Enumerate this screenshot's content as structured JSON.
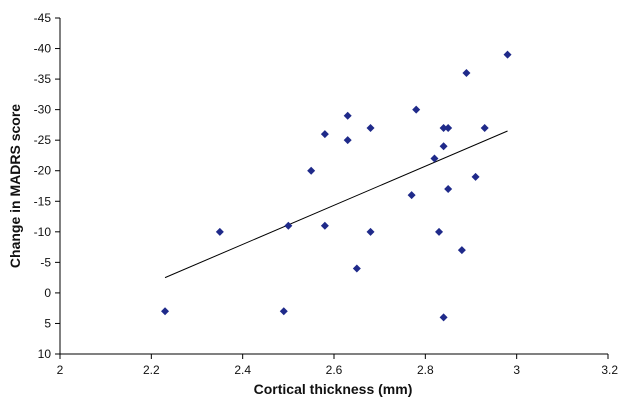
{
  "chart_data": {
    "type": "scatter",
    "title": "",
    "xlabel": "Cortical thickness (mm)",
    "ylabel": "Change in MADRS score",
    "xlim": [
      2,
      3.2
    ],
    "ylim": [
      -45,
      10
    ],
    "y_axis_inverted": true,
    "grid": false,
    "x_ticks": [
      2,
      2.2,
      2.4,
      2.6,
      2.8,
      3,
      3.2
    ],
    "x_tick_labels": [
      "2",
      "2.2",
      "2.4",
      "2.6",
      "2.8",
      "3",
      "3.2"
    ],
    "y_ticks": [
      -45,
      -40,
      -35,
      -30,
      -25,
      -20,
      -15,
      -10,
      -5,
      0,
      5,
      10
    ],
    "y_tick_labels": [
      "-45",
      "-40",
      "-35",
      "-30",
      "-25",
      "-20",
      "-15",
      "-10",
      "-5",
      "0",
      "5",
      "10"
    ],
    "marker_color": "#1f2a8a",
    "series": [
      {
        "points": [
          {
            "x": 2.23,
            "y": 3
          },
          {
            "x": 2.35,
            "y": -10
          },
          {
            "x": 2.49,
            "y": 3
          },
          {
            "x": 2.5,
            "y": -11
          },
          {
            "x": 2.55,
            "y": -20
          },
          {
            "x": 2.58,
            "y": -26
          },
          {
            "x": 2.58,
            "y": -11
          },
          {
            "x": 2.63,
            "y": -29
          },
          {
            "x": 2.63,
            "y": -25
          },
          {
            "x": 2.65,
            "y": -4
          },
          {
            "x": 2.68,
            "y": -27
          },
          {
            "x": 2.68,
            "y": -10
          },
          {
            "x": 2.77,
            "y": -16
          },
          {
            "x": 2.78,
            "y": -30
          },
          {
            "x": 2.82,
            "y": -22
          },
          {
            "x": 2.83,
            "y": -10
          },
          {
            "x": 2.84,
            "y": -27
          },
          {
            "x": 2.84,
            "y": -24
          },
          {
            "x": 2.84,
            "y": 4
          },
          {
            "x": 2.85,
            "y": -27
          },
          {
            "x": 2.85,
            "y": -17
          },
          {
            "x": 2.88,
            "y": -7
          },
          {
            "x": 2.89,
            "y": -36
          },
          {
            "x": 2.91,
            "y": -19
          },
          {
            "x": 2.93,
            "y": -27
          },
          {
            "x": 2.98,
            "y": -39
          }
        ]
      }
    ],
    "trendline": {
      "x1": 2.23,
      "y1": -2.5,
      "x2": 2.98,
      "y2": -26.5,
      "color": "#000000"
    }
  }
}
